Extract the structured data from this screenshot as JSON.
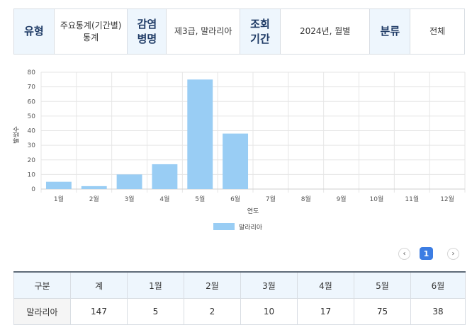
{
  "info": {
    "type_label": "유형",
    "type_value": "주요통계(기간별) 통계",
    "disease_label": "감염병명",
    "disease_value": "제3급, 말라리아",
    "period_label": "조회기간",
    "period_value": "2024년, 월별",
    "category_label": "분류",
    "category_value": "전체"
  },
  "chart_data": {
    "type": "bar",
    "categories": [
      "1월",
      "2월",
      "3월",
      "4월",
      "5월",
      "6월",
      "7월",
      "8월",
      "9월",
      "10월",
      "11월",
      "12월"
    ],
    "series": [
      {
        "name": "말라리아",
        "values": [
          5,
          2,
          10,
          17,
          75,
          38,
          0,
          0,
          0,
          0,
          0,
          0
        ]
      }
    ],
    "xlabel": "연도",
    "ylabel": "발생수",
    "ylim": [
      0,
      80
    ],
    "yticks": [
      0,
      10,
      20,
      30,
      40,
      50,
      60,
      70,
      80
    ],
    "grid": true,
    "legend": "bottom-center",
    "bar_color": "#99cdf4"
  },
  "pager": {
    "current": "1",
    "prev_icon": "chevron-left-icon",
    "next_icon": "chevron-right-icon"
  },
  "table": {
    "headers": [
      "구분",
      "계",
      "1월",
      "2월",
      "3월",
      "4월",
      "5월",
      "6월"
    ],
    "rows": [
      [
        "말라리아",
        "147",
        "5",
        "2",
        "10",
        "17",
        "75",
        "38"
      ]
    ]
  }
}
